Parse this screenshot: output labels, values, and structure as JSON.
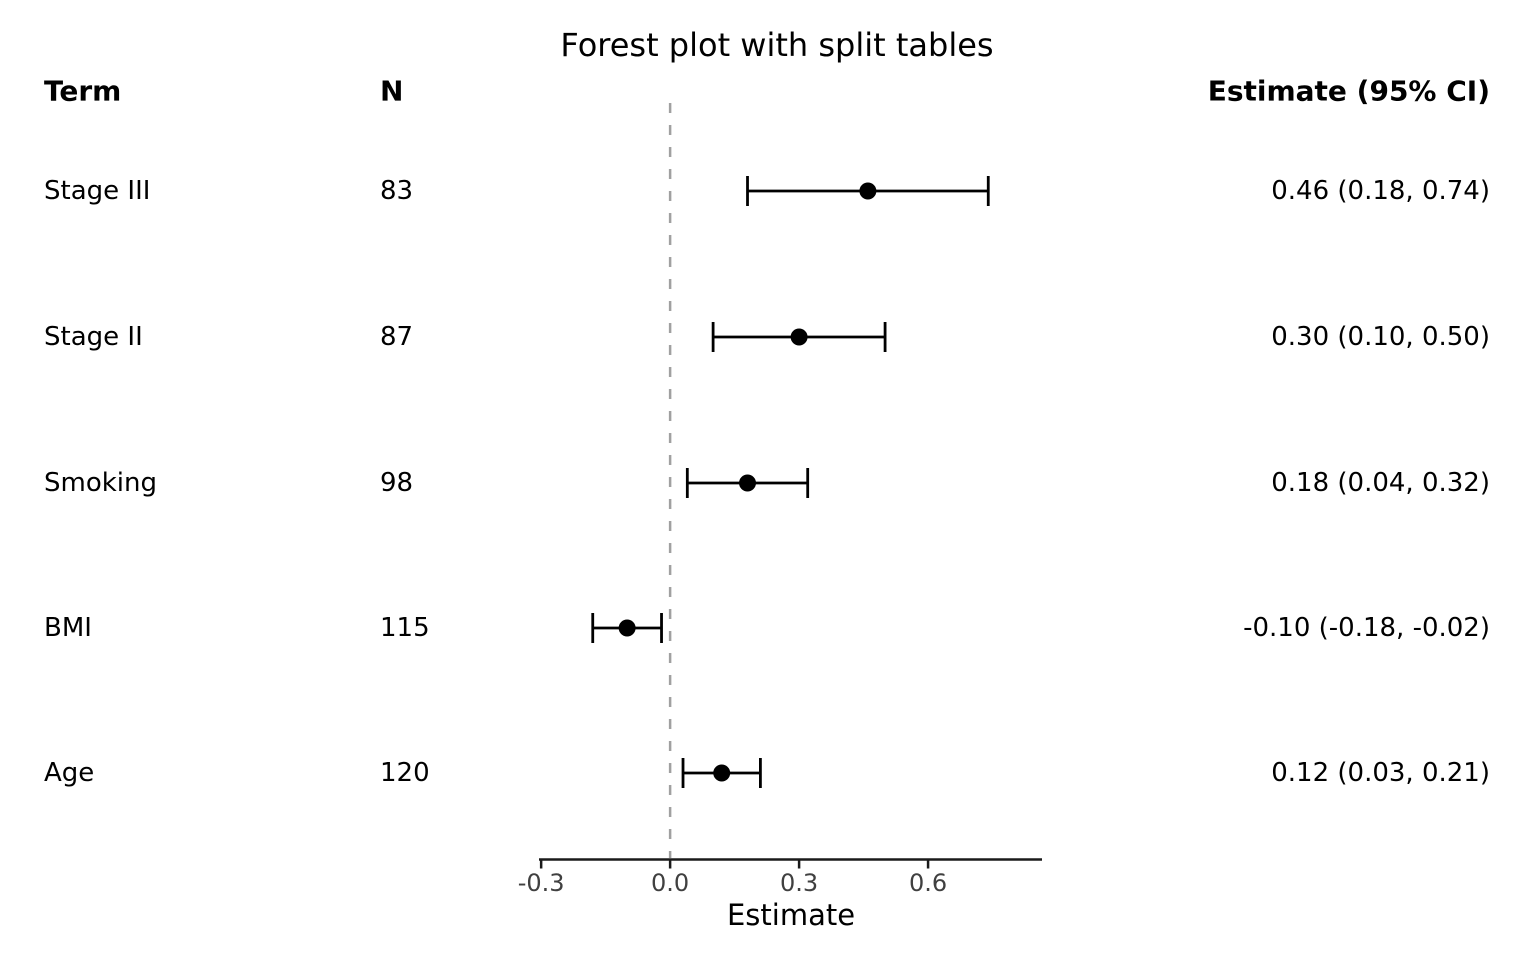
{
  "title": "Forest plot with split tables",
  "table": {
    "headers": {
      "term": "Term",
      "n": "N",
      "estimate": "Estimate (95% CI)"
    },
    "rows": [
      {
        "term": "Stage III",
        "n": "83",
        "estimate_label": "0.46 (0.18, 0.74)"
      },
      {
        "term": "Stage II",
        "n": "87",
        "estimate_label": "0.30 (0.10, 0.50)"
      },
      {
        "term": "Smoking",
        "n": "98",
        "estimate_label": "0.18 (0.04, 0.32)"
      },
      {
        "term": "BMI",
        "n": "115",
        "estimate_label": "-0.10 (-0.18, -0.02)"
      },
      {
        "term": "Age",
        "n": "120",
        "estimate_label": "0.12 (0.03, 0.21)"
      }
    ]
  },
  "chart_data": {
    "type": "forest",
    "title": "Forest plot with split tables",
    "xlabel": "Estimate",
    "xlim": [
      -0.305,
      0.865
    ],
    "x_ticks": [
      -0.3,
      0.0,
      0.3,
      0.6
    ],
    "x_tick_labels": [
      "-0.3",
      "0.0",
      "0.3",
      "0.6"
    ],
    "reference_line": 0.0,
    "grid": false,
    "legend": false,
    "series": [
      {
        "term": "Stage III",
        "n": 83,
        "estimate": 0.46,
        "ci_low": 0.18,
        "ci_high": 0.74
      },
      {
        "term": "Stage II",
        "n": 87,
        "estimate": 0.3,
        "ci_low": 0.1,
        "ci_high": 0.5
      },
      {
        "term": "Smoking",
        "n": 98,
        "estimate": 0.18,
        "ci_low": 0.04,
        "ci_high": 0.32
      },
      {
        "term": "BMI",
        "n": 115,
        "estimate": -0.1,
        "ci_low": -0.18,
        "ci_high": -0.02
      },
      {
        "term": "Age",
        "n": 120,
        "estimate": 0.12,
        "ci_low": 0.03,
        "ci_high": 0.21
      }
    ],
    "colors": {
      "marker": "#000000",
      "ci_line": "#000000",
      "reference_line": "#a0a0a0",
      "axis_line": "#1a1a1a",
      "tick_label": "#404040",
      "axis_title": "#000000"
    }
  }
}
